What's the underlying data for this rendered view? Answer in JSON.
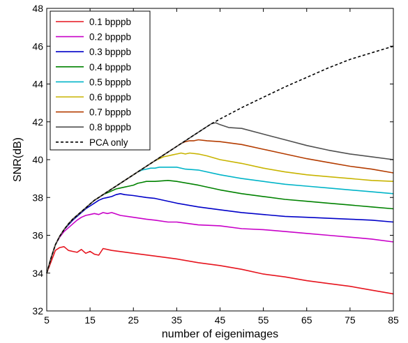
{
  "chart_data": {
    "type": "line",
    "title": "",
    "xlabel": "number of eigenimages",
    "ylabel": "SNR(dB)",
    "xlim": [
      5,
      85
    ],
    "ylim": [
      32,
      48
    ],
    "xticks": [
      5,
      15,
      25,
      35,
      45,
      55,
      65,
      75,
      85
    ],
    "yticks": [
      32,
      34,
      36,
      38,
      40,
      42,
      44,
      46,
      48
    ],
    "grid": false,
    "legend_position": "top-left",
    "series": [
      {
        "name": "0.1 bpppb",
        "color": "#e6141e",
        "dash": "solid",
        "x": [
          5,
          6,
          7,
          8,
          9,
          10,
          11,
          12,
          13,
          14,
          15,
          16,
          17,
          18,
          20,
          25,
          30,
          35,
          40,
          45,
          50,
          55,
          60,
          65,
          70,
          75,
          80,
          85
        ],
        "y": [
          34.0,
          34.6,
          35.2,
          35.35,
          35.4,
          35.2,
          35.15,
          35.1,
          35.25,
          35.05,
          35.15,
          35.0,
          34.95,
          35.3,
          35.2,
          35.05,
          34.9,
          34.75,
          34.55,
          34.4,
          34.2,
          33.95,
          33.8,
          33.6,
          33.45,
          33.3,
          33.1,
          32.9
        ]
      },
      {
        "name": "0.2 bpppb",
        "color": "#c800c8",
        "dash": "solid",
        "x": [
          5,
          6,
          7,
          8,
          9,
          10,
          11,
          12,
          13,
          14,
          15,
          16,
          17,
          18,
          19,
          20,
          22,
          25,
          28,
          30,
          33,
          35,
          40,
          45,
          50,
          55,
          60,
          65,
          70,
          75,
          80,
          85
        ],
        "y": [
          34.0,
          34.8,
          35.5,
          35.9,
          36.2,
          36.4,
          36.6,
          36.8,
          36.95,
          37.05,
          37.1,
          37.15,
          37.1,
          37.2,
          37.15,
          37.2,
          37.05,
          36.95,
          36.85,
          36.8,
          36.7,
          36.7,
          36.55,
          36.5,
          36.35,
          36.3,
          36.2,
          36.1,
          36.0,
          35.9,
          35.8,
          35.65
        ]
      },
      {
        "name": "0.3 bpppb",
        "color": "#0000c8",
        "dash": "solid",
        "x": [
          5,
          6,
          7,
          8,
          9,
          10,
          11,
          12,
          13,
          14,
          15,
          16,
          17,
          18,
          19,
          20,
          21,
          22,
          23,
          25,
          28,
          30,
          35,
          40,
          45,
          50,
          55,
          60,
          65,
          70,
          75,
          80,
          85
        ],
        "y": [
          34.0,
          34.8,
          35.5,
          35.95,
          36.3,
          36.55,
          36.8,
          37.0,
          37.2,
          37.4,
          37.55,
          37.7,
          37.85,
          37.95,
          38.0,
          38.05,
          38.15,
          38.2,
          38.15,
          38.1,
          38.0,
          37.95,
          37.7,
          37.5,
          37.35,
          37.2,
          37.1,
          37.0,
          36.95,
          36.9,
          36.85,
          36.8,
          36.7
        ]
      },
      {
        "name": "0.4 bpppb",
        "color": "#008200",
        "dash": "solid",
        "x": [
          5,
          6,
          7,
          8,
          9,
          10,
          11,
          12,
          13,
          14,
          15,
          16,
          17,
          18,
          19,
          20,
          21,
          22,
          23,
          24,
          25,
          26,
          27,
          28,
          30,
          33,
          35,
          40,
          45,
          50,
          55,
          60,
          65,
          70,
          75,
          80,
          85
        ],
        "y": [
          34.0,
          34.8,
          35.5,
          35.95,
          36.3,
          36.6,
          36.85,
          37.05,
          37.25,
          37.45,
          37.65,
          37.85,
          38.0,
          38.15,
          38.25,
          38.35,
          38.45,
          38.5,
          38.55,
          38.6,
          38.65,
          38.75,
          38.8,
          38.85,
          38.85,
          38.9,
          38.85,
          38.65,
          38.4,
          38.2,
          38.05,
          37.9,
          37.8,
          37.7,
          37.6,
          37.5,
          37.4
        ]
      },
      {
        "name": "0.5 bpppb",
        "color": "#00b4c8",
        "dash": "solid",
        "x": [
          5,
          6,
          7,
          8,
          9,
          10,
          11,
          12,
          13,
          14,
          15,
          16,
          17,
          18,
          19,
          20,
          21,
          22,
          23,
          24,
          25,
          26,
          27,
          28,
          29,
          30,
          31,
          32,
          33,
          35,
          37,
          40,
          45,
          50,
          55,
          60,
          65,
          70,
          75,
          80,
          85
        ],
        "y": [
          34.0,
          34.8,
          35.5,
          35.95,
          36.3,
          36.6,
          36.85,
          37.05,
          37.25,
          37.45,
          37.65,
          37.85,
          38.0,
          38.15,
          38.3,
          38.45,
          38.6,
          38.75,
          38.9,
          39.05,
          39.2,
          39.35,
          39.45,
          39.5,
          39.55,
          39.55,
          39.6,
          39.6,
          39.6,
          39.6,
          39.5,
          39.45,
          39.2,
          39.0,
          38.85,
          38.7,
          38.6,
          38.5,
          38.4,
          38.3,
          38.2
        ]
      },
      {
        "name": "0.6 bpppb",
        "color": "#c8b400",
        "dash": "solid",
        "x": [
          5,
          6,
          7,
          8,
          9,
          10,
          11,
          12,
          13,
          14,
          15,
          16,
          17,
          18,
          19,
          20,
          21,
          22,
          23,
          24,
          25,
          26,
          27,
          28,
          29,
          30,
          31,
          32,
          33,
          34,
          35,
          36,
          37,
          38,
          40,
          42,
          45,
          50,
          55,
          60,
          65,
          70,
          75,
          80,
          85
        ],
        "y": [
          34.0,
          34.8,
          35.5,
          35.95,
          36.3,
          36.6,
          36.85,
          37.05,
          37.25,
          37.45,
          37.65,
          37.85,
          38.0,
          38.15,
          38.3,
          38.45,
          38.6,
          38.75,
          38.9,
          39.05,
          39.2,
          39.35,
          39.5,
          39.65,
          39.8,
          39.95,
          40.05,
          40.15,
          40.2,
          40.25,
          40.3,
          40.35,
          40.3,
          40.35,
          40.3,
          40.2,
          40.0,
          39.8,
          39.55,
          39.35,
          39.2,
          39.1,
          39.0,
          38.9,
          38.85
        ]
      },
      {
        "name": "0.7 bpppb",
        "color": "#b43c00",
        "dash": "solid",
        "x": [
          5,
          6,
          7,
          8,
          9,
          10,
          11,
          12,
          13,
          14,
          15,
          16,
          17,
          18,
          19,
          20,
          21,
          22,
          23,
          24,
          25,
          26,
          27,
          28,
          29,
          30,
          31,
          32,
          33,
          34,
          35,
          36,
          37,
          38,
          39,
          40,
          42,
          45,
          50,
          55,
          60,
          65,
          70,
          75,
          80,
          85
        ],
        "y": [
          34.0,
          34.8,
          35.5,
          35.95,
          36.3,
          36.6,
          36.85,
          37.05,
          37.25,
          37.45,
          37.65,
          37.85,
          38.0,
          38.15,
          38.3,
          38.45,
          38.6,
          38.75,
          38.9,
          39.05,
          39.2,
          39.35,
          39.5,
          39.65,
          39.8,
          39.95,
          40.1,
          40.25,
          40.4,
          40.55,
          40.7,
          40.85,
          40.95,
          41.0,
          41.0,
          41.05,
          41.0,
          40.95,
          40.8,
          40.55,
          40.3,
          40.05,
          39.85,
          39.65,
          39.5,
          39.3
        ]
      },
      {
        "name": "0.8 bpppb",
        "color": "#505050",
        "dash": "solid",
        "x": [
          5,
          6,
          7,
          8,
          9,
          10,
          11,
          12,
          13,
          14,
          15,
          16,
          17,
          18,
          19,
          20,
          21,
          22,
          23,
          24,
          25,
          26,
          27,
          28,
          29,
          30,
          31,
          32,
          33,
          34,
          35,
          36,
          37,
          38,
          39,
          40,
          41,
          42,
          43,
          44,
          45,
          47,
          50,
          55,
          60,
          65,
          70,
          75,
          80,
          85
        ],
        "y": [
          34.0,
          34.8,
          35.5,
          35.95,
          36.3,
          36.6,
          36.85,
          37.05,
          37.25,
          37.45,
          37.65,
          37.85,
          38.0,
          38.15,
          38.3,
          38.45,
          38.6,
          38.75,
          38.9,
          39.05,
          39.2,
          39.35,
          39.5,
          39.65,
          39.8,
          39.95,
          40.1,
          40.25,
          40.4,
          40.55,
          40.7,
          40.85,
          41.0,
          41.15,
          41.3,
          41.45,
          41.6,
          41.75,
          41.9,
          41.95,
          41.85,
          41.7,
          41.65,
          41.35,
          41.05,
          40.75,
          40.5,
          40.3,
          40.15,
          40.0
        ]
      },
      {
        "name": "PCA only",
        "color": "#000000",
        "dash": "dashed",
        "x": [
          5,
          6,
          7,
          8,
          9,
          10,
          11,
          12,
          13,
          14,
          15,
          16,
          17,
          18,
          19,
          20,
          22,
          25,
          28,
          30,
          33,
          35,
          38,
          40,
          43,
          45,
          50,
          55,
          60,
          65,
          70,
          75,
          80,
          85
        ],
        "y": [
          34.0,
          34.8,
          35.5,
          35.95,
          36.3,
          36.6,
          36.85,
          37.05,
          37.25,
          37.45,
          37.65,
          37.85,
          38.0,
          38.15,
          38.3,
          38.45,
          38.75,
          39.2,
          39.65,
          39.95,
          40.4,
          40.7,
          41.15,
          41.45,
          41.9,
          42.15,
          42.75,
          43.3,
          43.85,
          44.35,
          44.85,
          45.3,
          45.65,
          46.0
        ]
      }
    ]
  }
}
